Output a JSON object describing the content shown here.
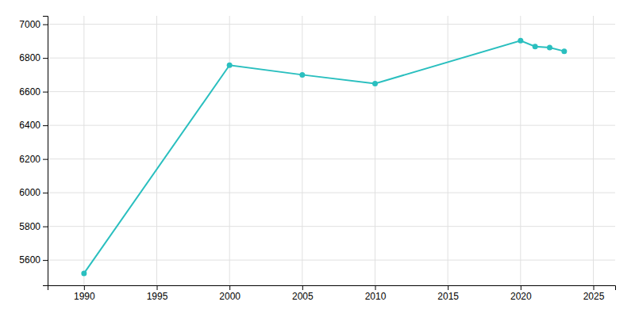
{
  "chart_data": {
    "type": "line",
    "x": [
      1990,
      2000,
      2005,
      2010,
      2020,
      2021,
      2022,
      2023
    ],
    "values": [
      5521,
      6757,
      6700,
      6648,
      6903,
      6868,
      6862,
      6840
    ],
    "color": "#2abfbf",
    "marker": "circle",
    "xlim": [
      1987.5,
      2026.5
    ],
    "ylim": [
      5450,
      7050
    ],
    "xticks": [
      1990,
      1995,
      2000,
      2005,
      2010,
      2015,
      2020,
      2025
    ],
    "yticks": [
      5600,
      5800,
      6000,
      6200,
      6400,
      6600,
      6800,
      7000
    ],
    "grid": true
  }
}
